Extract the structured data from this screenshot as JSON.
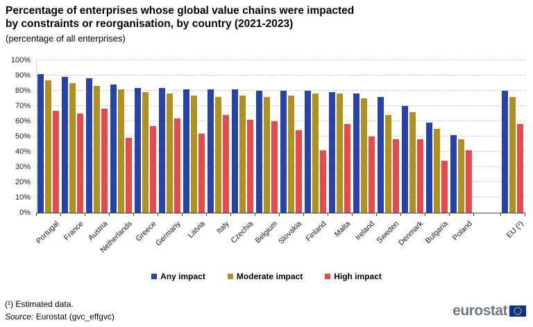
{
  "header": {
    "title_lines": [
      "Percentage of enterprises whose global value chains were impacted",
      "by constraints or reorganisation, by country (2021-2023)"
    ],
    "subtitle": "(percentage of all enterprises)"
  },
  "chart_data": {
    "type": "bar",
    "title": "Percentage of enterprises whose global value chains were impacted by constraints or reorganisation, by country (2021-2023)",
    "subtitle": "(percentage of all enterprises)",
    "categories": [
      "Portugal",
      "France",
      "Austria",
      "Netherlands",
      "Greece",
      "Germany",
      "Latvia",
      "Italy",
      "Czechia",
      "Belgium",
      "Slovakia",
      "Finland",
      "Malta",
      "Ireland",
      "Sweden",
      "Denmark",
      "Bulgaria",
      "Poland",
      "EU (¹)"
    ],
    "series": [
      {
        "name": "Any impact",
        "color": "#2644A7",
        "values": [
          91,
          89,
          88,
          84,
          82,
          82,
          81,
          81,
          81,
          80,
          80,
          80,
          79,
          78,
          76,
          70,
          59,
          51,
          80
        ]
      },
      {
        "name": "Moderate impact",
        "color": "#B09120",
        "values": [
          87,
          85,
          83,
          81,
          79,
          78,
          77,
          76,
          77,
          76,
          77,
          78,
          78,
          75,
          64,
          66,
          55,
          48,
          76
        ]
      },
      {
        "name": "High impact",
        "color": "#E8494C",
        "values": [
          67,
          65,
          68,
          49,
          57,
          62,
          52,
          64,
          61,
          60,
          54,
          41,
          58,
          50,
          48,
          48,
          34,
          41,
          58
        ]
      }
    ],
    "ylim": [
      0,
      100
    ],
    "ytick_step": 10,
    "ytick_labels": [
      "0%",
      "10%",
      "20%",
      "30%",
      "40%",
      "50%",
      "60%",
      "70%",
      "80%",
      "90%",
      "100%"
    ],
    "grid": "horizontal-dashed",
    "legend_position": "bottom",
    "last_category_separated": true
  },
  "footer": {
    "note": "(¹) Estimated data.",
    "source_label": "Source:",
    "source_text": " Eurostat (gvc_effgvc)",
    "logo_text": "eurostat"
  }
}
